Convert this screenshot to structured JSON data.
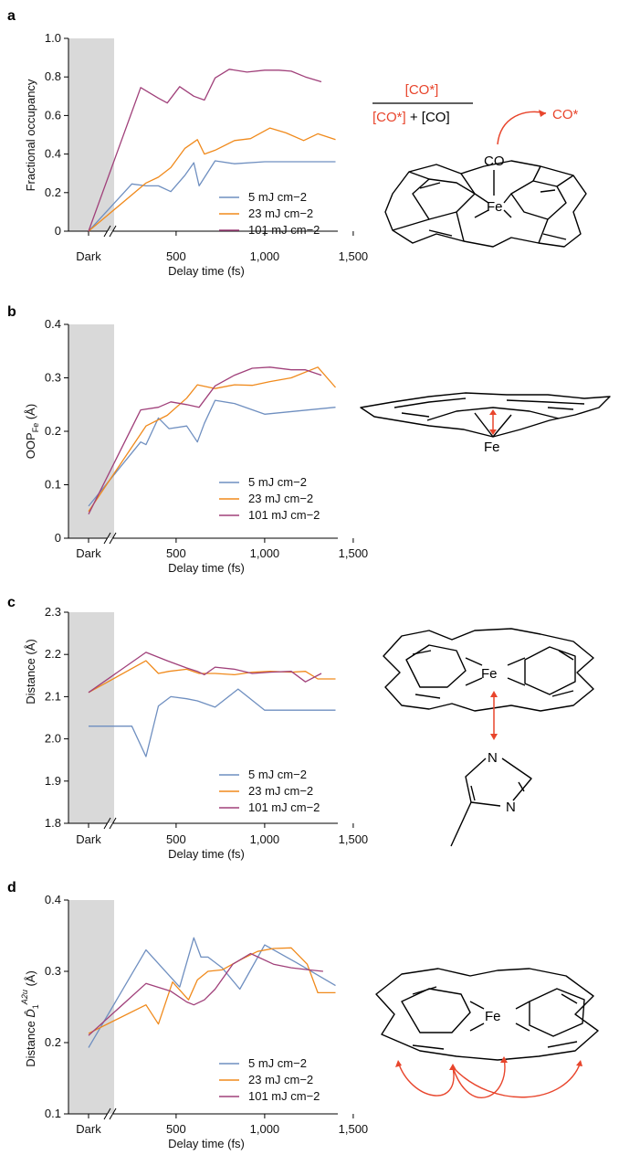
{
  "colors": {
    "s5": "#6f8fc0",
    "s23": "#f08a1c",
    "s101": "#a0407a",
    "dark_band": "#d9d9d9",
    "arrow": "#e8452c"
  },
  "panel_labels": [
    "a",
    "b",
    "c",
    "d"
  ],
  "xaxis": {
    "dark_label": "Dark",
    "ticks": [
      "500",
      "1,000",
      "1,500"
    ],
    "label": "Delay time (fs)"
  },
  "legend": [
    "5 mJ cm−2",
    "23 mJ cm−2",
    "101 mJ cm−2"
  ],
  "ylabels": {
    "a": "Fractional occupancy",
    "b_main": "OOP",
    "b_sub": "Fe",
    "b_unit": " (Å)",
    "c": "Distance (Å)",
    "d_main": "Distance ",
    "d_sym": "D̂",
    "d_sub": "1",
    "d_sup": "A2u",
    "d_unit": " (Å)"
  },
  "diagram_a": {
    "num": "[CO*]",
    "den1": "[CO*]",
    "den2": " + [CO]",
    "released": "CO*",
    "ligand": "CO",
    "metal": "Fe"
  },
  "diagram_b": {
    "metal": "Fe"
  },
  "diagram_c": {
    "metal": "Fe",
    "n1": "N",
    "n2": "N"
  },
  "diagram_d": {
    "metal": "Fe"
  },
  "chart_data": [
    {
      "type": "line",
      "panel": "a",
      "ylabel": "Fractional occupancy",
      "xlabel": "Delay time (fs)",
      "ylim": [
        0,
        1.0
      ],
      "yticks": [
        "0",
        "0.2",
        "0.4",
        "0.6",
        "0.8",
        "1.0"
      ],
      "series": [
        {
          "name": "5 mJ cm−2",
          "x": [
            "Dark",
            250,
            330,
            400,
            470,
            550,
            600,
            630,
            720,
            830,
            1000,
            1180,
            1400
          ],
          "y": [
            0,
            0.245,
            0.235,
            0.235,
            0.205,
            0.29,
            0.355,
            0.235,
            0.365,
            0.35,
            0.36,
            0.36,
            0.36
          ]
        },
        {
          "name": "23 mJ cm−2",
          "x": [
            "Dark",
            330,
            400,
            470,
            550,
            620,
            660,
            720,
            830,
            920,
            1030,
            1120,
            1220,
            1300,
            1400
          ],
          "y": [
            0,
            0.25,
            0.28,
            0.33,
            0.43,
            0.475,
            0.4,
            0.42,
            0.47,
            0.48,
            0.535,
            0.51,
            0.47,
            0.505,
            0.475
          ]
        },
        {
          "name": "101 mJ cm−2",
          "x": [
            "Dark",
            300,
            400,
            450,
            520,
            600,
            660,
            720,
            800,
            900,
            1000,
            1080,
            1150,
            1230,
            1320
          ],
          "y": [
            0,
            0.745,
            0.69,
            0.665,
            0.75,
            0.7,
            0.68,
            0.795,
            0.84,
            0.825,
            0.835,
            0.835,
            0.83,
            0.8,
            0.775
          ]
        }
      ]
    },
    {
      "type": "line",
      "panel": "b",
      "ylabel": "OOPFe (Å)",
      "xlabel": "Delay time (fs)",
      "ylim": [
        0,
        0.4
      ],
      "yticks": [
        "0",
        "0.1",
        "0.2",
        "0.3",
        "0.4"
      ],
      "series": [
        {
          "name": "5 mJ cm−2",
          "x": [
            "Dark",
            300,
            330,
            400,
            460,
            560,
            620,
            660,
            720,
            830,
            1000,
            1400
          ],
          "y": [
            0.06,
            0.18,
            0.175,
            0.225,
            0.205,
            0.21,
            0.18,
            0.215,
            0.258,
            0.252,
            0.232,
            0.245
          ]
        },
        {
          "name": "23 mJ cm−2",
          "x": [
            "Dark",
            330,
            450,
            560,
            620,
            720,
            830,
            930,
            1030,
            1150,
            1300,
            1400
          ],
          "y": [
            0.05,
            0.21,
            0.23,
            0.262,
            0.287,
            0.28,
            0.287,
            0.286,
            0.293,
            0.3,
            0.32,
            0.282
          ]
        },
        {
          "name": "101 mJ cm−2",
          "x": [
            "Dark",
            300,
            400,
            470,
            560,
            630,
            720,
            830,
            930,
            1030,
            1150,
            1230,
            1320
          ],
          "y": [
            0.045,
            0.24,
            0.245,
            0.255,
            0.25,
            0.245,
            0.285,
            0.305,
            0.318,
            0.32,
            0.315,
            0.315,
            0.305
          ]
        }
      ]
    },
    {
      "type": "line",
      "panel": "c",
      "ylabel": "Distance (Å)",
      "xlabel": "Delay time (fs)",
      "ylim": [
        1.8,
        2.3
      ],
      "yticks": [
        "1.8",
        "1.9",
        "2.0",
        "2.1",
        "2.2",
        "2.3"
      ],
      "series": [
        {
          "name": "5 mJ cm−2",
          "x": [
            "Dark",
            250,
            330,
            400,
            470,
            560,
            620,
            720,
            850,
            1000,
            1400
          ],
          "y": [
            2.03,
            2.03,
            1.958,
            2.078,
            2.1,
            2.095,
            2.09,
            2.075,
            2.118,
            2.068,
            2.068
          ]
        },
        {
          "name": "23 mJ cm−2",
          "x": [
            "Dark",
            330,
            400,
            460,
            560,
            630,
            720,
            830,
            930,
            1030,
            1150,
            1230,
            1300,
            1400
          ],
          "y": [
            2.11,
            2.185,
            2.155,
            2.16,
            2.165,
            2.155,
            2.155,
            2.152,
            2.158,
            2.16,
            2.158,
            2.16,
            2.142,
            2.142
          ]
        },
        {
          "name": "101 mJ cm−2",
          "x": [
            "Dark",
            330,
            450,
            560,
            620,
            660,
            720,
            830,
            930,
            1030,
            1150,
            1230,
            1320
          ],
          "y": [
            2.11,
            2.205,
            2.185,
            2.168,
            2.16,
            2.152,
            2.17,
            2.165,
            2.155,
            2.158,
            2.16,
            2.135,
            2.155
          ]
        }
      ]
    },
    {
      "type": "line",
      "panel": "d",
      "ylabel": "Distance D̂1A2u (Å)",
      "xlabel": "Delay time (fs)",
      "ylim": [
        0.1,
        0.4
      ],
      "yticks": [
        "0.1",
        "0.2",
        "0.3",
        "0.4"
      ],
      "series": [
        {
          "name": "5 mJ cm−2",
          "x": [
            "Dark",
            330,
            520,
            600,
            640,
            680,
            760,
            860,
            1000,
            1180,
            1400
          ],
          "y": [
            0.193,
            0.33,
            0.278,
            0.347,
            0.32,
            0.32,
            0.305,
            0.275,
            0.337,
            0.312,
            0.28
          ]
        },
        {
          "name": "23 mJ cm−2",
          "x": [
            "Dark",
            330,
            400,
            480,
            570,
            620,
            680,
            760,
            870,
            960,
            1050,
            1150,
            1240,
            1300,
            1400
          ],
          "y": [
            0.213,
            0.253,
            0.226,
            0.285,
            0.26,
            0.288,
            0.3,
            0.302,
            0.317,
            0.328,
            0.332,
            0.333,
            0.31,
            0.27,
            0.27
          ]
        },
        {
          "name": "101 mJ cm−2",
          "x": [
            "Dark",
            330,
            470,
            560,
            600,
            660,
            720,
            820,
            920,
            1050,
            1150,
            1250,
            1330
          ],
          "y": [
            0.21,
            0.283,
            0.272,
            0.257,
            0.253,
            0.26,
            0.275,
            0.31,
            0.325,
            0.31,
            0.305,
            0.302,
            0.3
          ]
        }
      ]
    }
  ]
}
